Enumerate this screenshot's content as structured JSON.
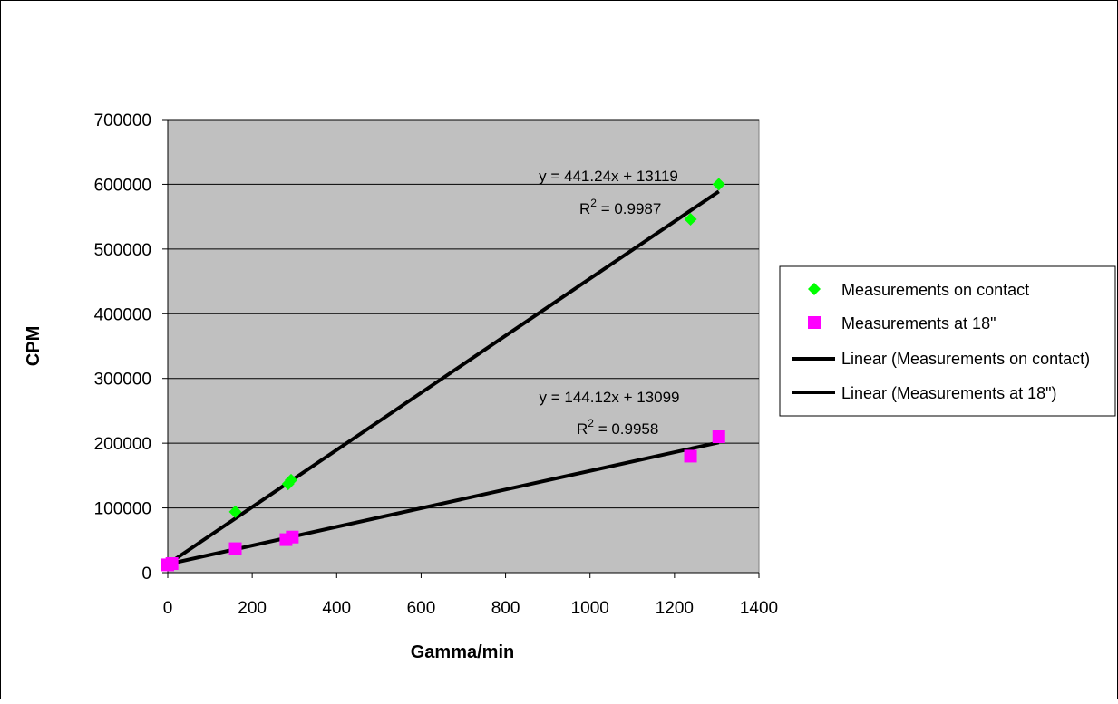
{
  "chart_data": {
    "type": "scatter",
    "title": "",
    "xlabel": "Gamma/min",
    "ylabel": "CPM",
    "xlim": [
      0,
      1400
    ],
    "ylim": [
      0,
      700000
    ],
    "x_ticks": [
      "0",
      "200",
      "400",
      "600",
      "800",
      "1000",
      "1200",
      "1400"
    ],
    "y_ticks": [
      "0",
      "100000",
      "200000",
      "300000",
      "400000",
      "500000",
      "600000",
      "700000"
    ],
    "grid": "horizontal",
    "legend_position": "right",
    "plot_background": "#c0c0c0",
    "series": [
      {
        "name": "Measurements on contact",
        "marker": "diamond",
        "color": "#00ff00",
        "x": [
          0,
          160,
          285,
          292,
          1238,
          1305
        ],
        "y": [
          12000,
          94000,
          137000,
          143000,
          546000,
          600000
        ]
      },
      {
        "name": "Measurements at 18\"",
        "marker": "square",
        "color": "#ff00ff",
        "x": [
          0,
          10,
          160,
          280,
          295,
          1238,
          1305
        ],
        "y": [
          12000,
          14000,
          37000,
          51000,
          55000,
          180000,
          210000
        ]
      }
    ],
    "trendlines": [
      {
        "name": "Linear (Measurements on contact)",
        "color": "#000000",
        "slope": 441.24,
        "intercept": 13119,
        "x_range": [
          0,
          1305
        ],
        "equation": "y = 441.24x + 13119",
        "r2_value": " = 0.9987"
      },
      {
        "name": "Linear (Measurements at 18\")",
        "color": "#000000",
        "slope": 144.12,
        "intercept": 13099,
        "x_range": [
          0,
          1305
        ],
        "equation": "y = 144.12x + 13099",
        "r2_value": " = 0.9958"
      }
    ]
  }
}
